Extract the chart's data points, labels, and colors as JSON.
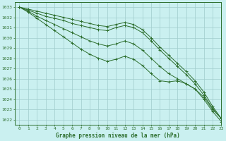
{
  "bg_color": "#caf0f0",
  "grid_color": "#a0cccc",
  "line_color": "#2d6e2d",
  "title": "Graphe pression niveau de la mer (hPa)",
  "ylabel_values": [
    1022,
    1023,
    1024,
    1025,
    1026,
    1027,
    1028,
    1029,
    1030,
    1031,
    1032,
    1033
  ],
  "xlim": [
    -0.5,
    23
  ],
  "ylim": [
    1021.5,
    1033.5
  ],
  "series": [
    [
      1033.0,
      1032.8,
      1032.6,
      1032.4,
      1032.2,
      1032.0,
      1031.8,
      1031.6,
      1031.4,
      1031.2,
      1031.1,
      1031.3,
      1031.5,
      1031.3,
      1030.8,
      1030.0,
      1029.1,
      1028.3,
      1027.5,
      1026.7,
      1025.8,
      1024.7,
      1023.3,
      1022.1
    ],
    [
      1033.0,
      1032.7,
      1032.4,
      1032.1,
      1031.9,
      1031.7,
      1031.4,
      1031.2,
      1031.0,
      1030.8,
      1030.7,
      1031.0,
      1031.2,
      1031.0,
      1030.5,
      1029.7,
      1028.8,
      1028.0,
      1027.2,
      1026.4,
      1025.5,
      1024.4,
      1023.1,
      1022.1
    ],
    [
      1033.0,
      1032.6,
      1032.1,
      1031.7,
      1031.3,
      1030.9,
      1030.5,
      1030.1,
      1029.7,
      1029.4,
      1029.2,
      1029.4,
      1029.7,
      1029.4,
      1028.8,
      1028.0,
      1027.2,
      1026.5,
      1026.0,
      1025.5,
      1025.0,
      1024.2,
      1023.0,
      1022.1
    ],
    [
      1033.0,
      1032.5,
      1031.9,
      1031.3,
      1030.7,
      1030.1,
      1029.5,
      1028.9,
      1028.4,
      1028.0,
      1027.7,
      1027.9,
      1028.2,
      1027.9,
      1027.3,
      1026.5,
      1025.8,
      1025.7,
      1025.8,
      1025.5,
      1025.0,
      1024.0,
      1022.8,
      1021.8
    ]
  ]
}
